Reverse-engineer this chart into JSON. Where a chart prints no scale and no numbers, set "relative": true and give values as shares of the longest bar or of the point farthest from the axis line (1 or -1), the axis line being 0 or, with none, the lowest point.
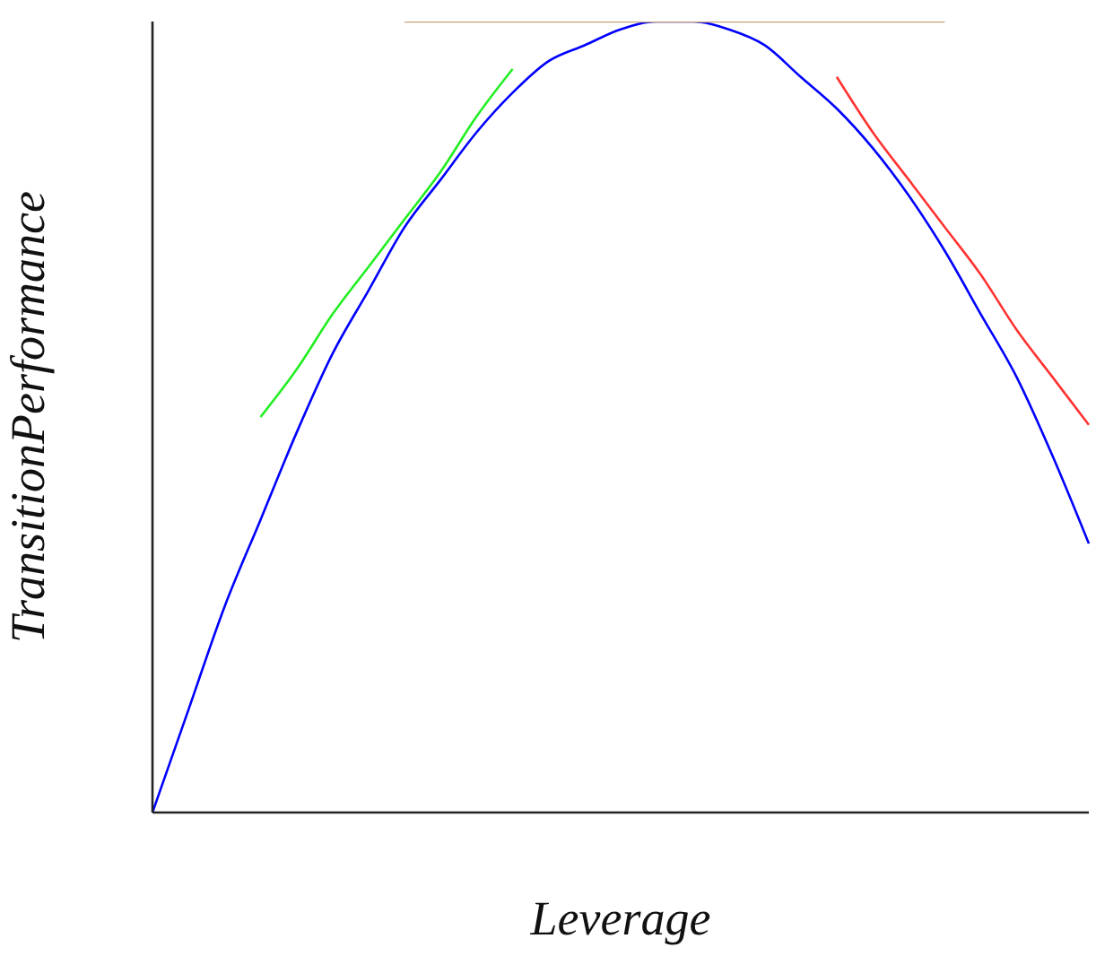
{
  "chart_data": {
    "type": "line",
    "relative": true,
    "xlabel": "Leverage",
    "ylabel": "TransitionPerformance",
    "marker": "none",
    "line_style": "solid",
    "grid": false,
    "legend": false,
    "categories": [
      null,
      null,
      null,
      null,
      null,
      null,
      null,
      null,
      null,
      null,
      null,
      null,
      null,
      null,
      null,
      null,
      null,
      null,
      null,
      null,
      null,
      null,
      null,
      null,
      null,
      null,
      null
    ],
    "series": [
      {
        "color": "#0000ff",
        "values": [
          0,
          0.13,
          0.26,
          0.37,
          0.48,
          0.58,
          0.66,
          0.74,
          0.8,
          0.86,
          0.91,
          0.95,
          0.97,
          0.99,
          1,
          1,
          0.99,
          0.97,
          0.93,
          0.89,
          0.84,
          0.78,
          0.71,
          0.63,
          0.55,
          0.45,
          0.34
        ]
      },
      {
        "color": "#22ee22",
        "values": [
          null,
          null,
          null,
          0.5,
          0.56,
          0.63,
          0.69,
          0.75,
          0.81,
          0.88,
          0.94,
          null,
          null,
          null,
          null,
          null,
          null,
          null,
          null,
          null,
          null,
          null,
          null,
          null,
          null,
          null,
          null
        ]
      },
      {
        "color": "#c8a27c",
        "values": [
          null,
          null,
          null,
          null,
          null,
          null,
          null,
          1,
          1,
          1,
          1,
          1,
          1,
          1,
          1,
          1,
          1,
          1,
          1,
          1,
          1,
          1,
          1,
          null,
          null,
          null,
          null
        ]
      },
      {
        "color": "#ff3333",
        "values": [
          null,
          null,
          null,
          null,
          null,
          null,
          null,
          null,
          null,
          null,
          null,
          null,
          null,
          null,
          null,
          null,
          null,
          null,
          null,
          0.93,
          0.86,
          0.8,
          0.74,
          0.68,
          0.61,
          0.55,
          0.49
        ]
      }
    ]
  }
}
